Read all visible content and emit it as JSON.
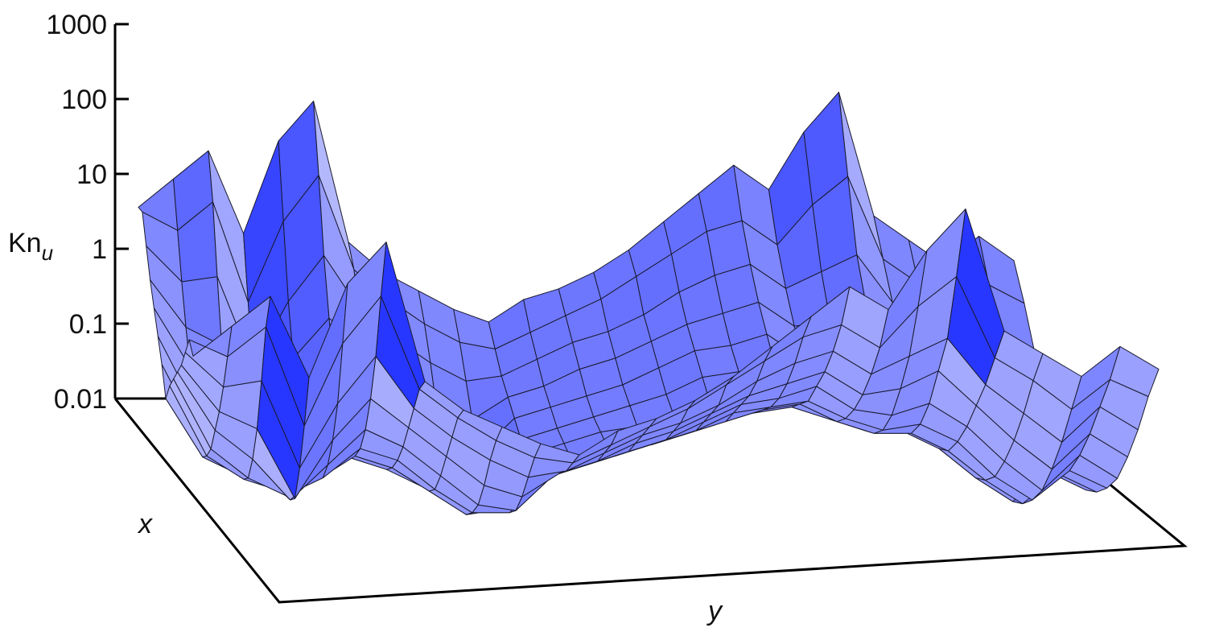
{
  "chart_data": {
    "type": "surface",
    "z_label_main": "Kn",
    "z_label_sub": "u",
    "x_label": "x",
    "y_label": "y",
    "z_scale": "log",
    "z_ticks": [
      "1000",
      "100",
      "10",
      "1",
      "0.1",
      "0.01"
    ],
    "z_tick_values": [
      1000,
      100,
      10,
      1,
      0.1,
      0.01
    ],
    "z_range": [
      0.01,
      1000
    ],
    "x_range": [
      0,
      1
    ],
    "y_range": [
      0,
      1
    ],
    "grid": false,
    "surface_color": "#3a46ff",
    "note_values": "log10(Kn_u) on a 15x26 grid, rows = x from 0 to 1, columns = y from 0 to 1, estimated from the figure",
    "log10_values": [
      [
        1.0,
        1.5,
        2.0,
        0.6,
        2.2,
        2.9,
        0.5,
        0.0,
        -0.3,
        -0.6,
        -0.8,
        -0.4,
        -0.2,
        0.1,
        0.5,
        1.0,
        1.5,
        2.0,
        1.6,
        2.6,
        3.3,
        1.2,
        0.8,
        0.4,
        0.9,
        0.5
      ],
      [
        1.1,
        0.8,
        1.3,
        -0.4,
        1.0,
        1.8,
        0.2,
        -0.3,
        -0.7,
        -1.0,
        -1.1,
        -0.8,
        -0.5,
        -0.2,
        0.2,
        0.6,
        1.0,
        1.2,
        0.8,
        1.5,
        2.0,
        0.6,
        0.2,
        -0.3,
        0.2,
        -0.1
      ],
      [
        0.7,
        0.1,
        0.2,
        -1.3,
        -0.2,
        0.6,
        -0.3,
        -0.8,
        -1.2,
        -1.5,
        -1.4,
        -1.1,
        -0.8,
        -0.6,
        -0.3,
        0.1,
        0.4,
        0.6,
        0.2,
        0.5,
        0.8,
        0.0,
        -0.5,
        -1.0,
        -0.4,
        -0.8
      ],
      [
        0.3,
        -0.5,
        -0.8,
        -2.0,
        -1.0,
        -0.3,
        -0.8,
        -1.3,
        -1.8,
        -2.0,
        -1.6,
        -1.4,
        -1.1,
        -0.9,
        -0.6,
        -0.3,
        -0.1,
        0.1,
        -0.3,
        -0.2,
        0.1,
        -0.5,
        -1.1,
        -1.6,
        -1.0,
        -1.4
      ],
      [
        0.0,
        -1.0,
        -1.5,
        -2.2,
        -1.6,
        -1.0,
        -1.3,
        -1.8,
        -2.3,
        -2.4,
        -1.8,
        -1.6,
        -1.4,
        -1.2,
        -0.9,
        -0.6,
        -0.5,
        -0.3,
        -0.7,
        -0.8,
        -0.6,
        -1.0,
        -1.6,
        -2.1,
        -1.5,
        -1.9
      ],
      [
        -0.3,
        -1.5,
        -2.0,
        -2.3,
        -2.0,
        -1.5,
        -1.7,
        -2.2,
        -2.6,
        -2.6,
        -2.0,
        -1.8,
        -1.6,
        -1.4,
        -1.2,
        -0.9,
        -0.8,
        -0.7,
        -1.0,
        -1.2,
        -1.1,
        -1.4,
        -2.0,
        -2.4,
        -1.9,
        -2.2
      ],
      [
        -0.6,
        -1.8,
        -2.2,
        -2.4,
        -2.2,
        -1.8,
        -2.0,
        -2.4,
        -2.8,
        -2.7,
        -2.1,
        -1.9,
        -1.7,
        -1.6,
        -1.4,
        -1.2,
        -1.0,
        -0.9,
        -1.2,
        -1.4,
        -1.4,
        -1.7,
        -2.2,
        -2.6,
        -2.1,
        -2.4
      ],
      [
        -1.0,
        -2.0,
        -2.3,
        -2.4,
        -2.3,
        -2.0,
        -2.2,
        -2.5,
        -2.9,
        -2.8,
        -2.2,
        -2.0,
        -1.8,
        -1.7,
        -1.5,
        -1.3,
        -1.2,
        -1.1,
        -1.3,
        -1.5,
        -1.5,
        -1.8,
        -2.3,
        -2.7,
        -2.2,
        -2.5
      ],
      [
        -0.6,
        -1.8,
        -2.2,
        -2.4,
        -2.2,
        -1.8,
        -2.0,
        -2.4,
        -2.8,
        -2.7,
        -2.1,
        -1.9,
        -1.7,
        -1.6,
        -1.4,
        -1.2,
        -1.0,
        -0.9,
        -1.2,
        -1.4,
        -1.4,
        -1.7,
        -2.2,
        -2.6,
        -2.1,
        -2.4
      ],
      [
        -0.3,
        -1.5,
        -2.0,
        -2.3,
        -2.0,
        -1.5,
        -1.7,
        -2.2,
        -2.6,
        -2.6,
        -2.0,
        -1.8,
        -1.6,
        -1.4,
        -1.2,
        -0.9,
        -0.8,
        -0.7,
        -1.0,
        -1.2,
        -1.1,
        -1.4,
        -2.0,
        -2.4,
        -1.9,
        -2.2
      ],
      [
        0.0,
        -1.0,
        -1.5,
        -2.2,
        -1.6,
        -1.0,
        -1.3,
        -1.8,
        -2.3,
        -2.4,
        -1.8,
        -1.6,
        -1.4,
        -1.2,
        -0.9,
        -0.6,
        -0.5,
        -0.3,
        -0.7,
        -0.8,
        -0.6,
        -1.0,
        -1.6,
        -2.1,
        -1.5,
        -1.9
      ],
      [
        0.3,
        -0.5,
        -0.8,
        -2.0,
        -1.0,
        -0.3,
        -0.8,
        -1.3,
        -1.8,
        -2.0,
        -1.6,
        -1.4,
        -1.1,
        -0.9,
        -0.6,
        -0.3,
        -0.1,
        0.1,
        -0.3,
        -0.2,
        0.1,
        -0.5,
        -1.1,
        -1.6,
        -1.0,
        -1.4
      ],
      [
        0.7,
        0.1,
        0.2,
        -1.3,
        -0.2,
        0.6,
        -0.3,
        -0.8,
        -1.2,
        -1.5,
        -1.4,
        -1.1,
        -0.8,
        -0.6,
        -0.3,
        0.1,
        0.4,
        0.6,
        0.2,
        0.5,
        0.8,
        0.0,
        -0.5,
        -1.0,
        -0.4,
        -0.8
      ],
      [
        1.1,
        0.8,
        1.3,
        -0.4,
        1.0,
        1.8,
        0.2,
        -0.3,
        -0.7,
        -1.0,
        -1.1,
        -0.8,
        -0.5,
        -0.2,
        0.2,
        0.6,
        1.0,
        1.2,
        0.8,
        1.5,
        2.0,
        0.6,
        0.2,
        -0.3,
        0.2,
        -0.1
      ],
      [
        1.0,
        1.5,
        2.0,
        0.6,
        2.2,
        2.9,
        0.5,
        0.0,
        -0.3,
        -0.6,
        -0.8,
        -0.4,
        -0.2,
        0.1,
        0.5,
        1.0,
        1.5,
        2.0,
        1.6,
        2.6,
        3.3,
        1.2,
        0.8,
        0.4,
        0.9,
        0.5
      ]
    ]
  }
}
